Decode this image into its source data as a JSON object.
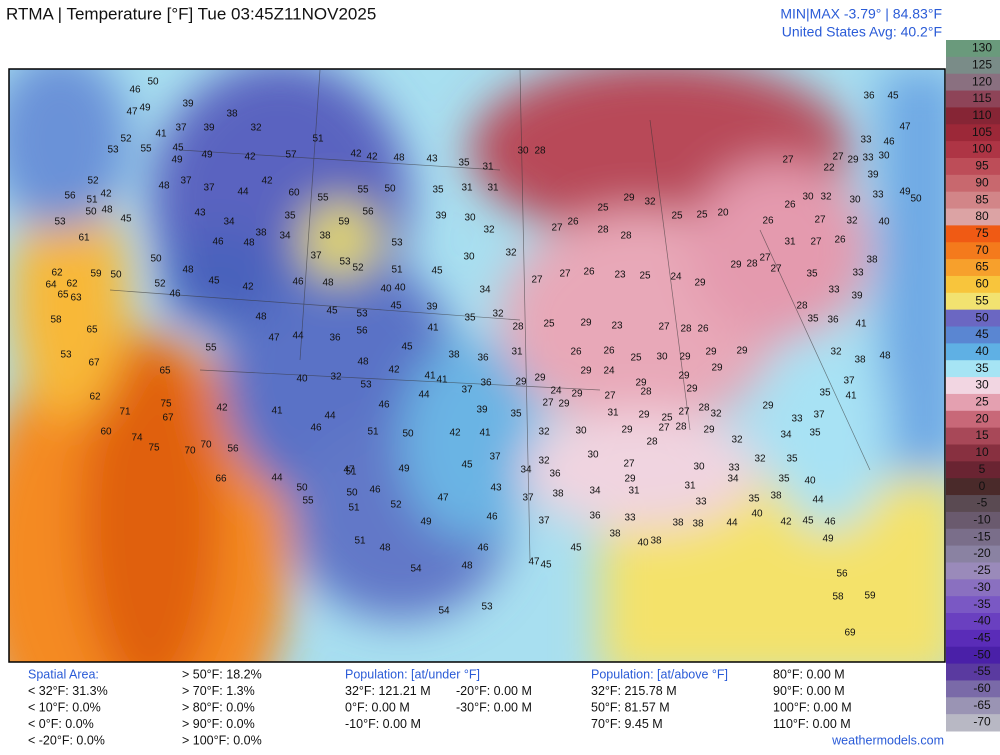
{
  "header": {
    "title": "RTMA | Temperature [°F]  Tue 03:45Z11NOV2025",
    "minmax": "MIN|MAX -3.79° | 84.83°F",
    "average": "United States Avg: 40.2°F"
  },
  "colorbar": {
    "ticks": [
      130,
      125,
      120,
      115,
      110,
      105,
      100,
      95,
      90,
      85,
      80,
      75,
      70,
      65,
      60,
      55,
      50,
      45,
      40,
      35,
      30,
      25,
      20,
      15,
      10,
      5,
      0,
      -5,
      -10,
      -15,
      -20,
      -25,
      -30,
      -35,
      -40,
      -45,
      -50,
      -55,
      -60,
      -65,
      -70
    ],
    "colors": [
      "#6a9a7c",
      "#7a8c88",
      "#8a7080",
      "#8e4458",
      "#862535",
      "#9c2838",
      "#ae3545",
      "#bd4d58",
      "#c8686e",
      "#d28588",
      "#dca3a4",
      "#f05a14",
      "#f47a1c",
      "#f7a02c",
      "#f8c53c",
      "#f2e270",
      "#6b67c2",
      "#5a86d2",
      "#5fb0e4",
      "#a6e4f4",
      "#f2d6e2",
      "#e4a0b0",
      "#c86878",
      "#a84858",
      "#883040",
      "#6a2432",
      "#4a2a2a",
      "#5a4a52",
      "#6a5a6e",
      "#7a6e8a",
      "#8a82a2",
      "#9a8aba",
      "#8a70c0",
      "#7a58c4",
      "#6a40c0",
      "#5a2cb8",
      "#4a20a8",
      "#5a3aa0",
      "#7a6aa8",
      "#9a94b4",
      "#b8b8c4"
    ]
  },
  "stations": [
    50,
    46,
    49,
    39,
    47,
    41,
    37,
    39,
    38,
    32,
    52,
    53,
    55,
    45,
    49,
    49,
    42,
    57,
    51,
    42,
    42,
    48,
    43,
    35,
    31,
    30,
    28,
    52,
    48,
    37,
    37,
    44,
    42,
    60,
    55,
    55,
    50,
    35,
    31,
    31,
    56,
    51,
    42,
    50,
    48,
    45,
    43,
    34,
    35,
    59,
    56,
    39,
    30,
    53,
    61,
    38,
    34,
    38,
    53,
    46,
    48,
    32,
    27,
    26,
    25,
    29,
    32,
    28,
    28,
    25,
    25,
    20,
    50,
    48,
    37,
    53,
    52,
    51,
    45,
    30,
    32,
    62,
    62,
    59,
    50,
    52,
    46,
    45,
    42,
    46,
    48,
    40,
    40,
    34,
    27,
    27,
    26,
    23,
    25,
    24,
    29,
    29,
    27,
    31,
    27,
    26,
    64,
    63,
    65,
    45,
    53,
    45,
    39,
    35,
    32,
    28,
    25,
    29,
    23,
    27,
    28,
    26,
    58,
    65,
    48,
    47,
    44,
    36,
    56,
    45,
    41,
    38,
    36,
    31,
    26,
    26,
    25,
    30,
    29,
    29,
    29,
    55,
    53,
    67,
    48,
    42,
    41,
    41,
    37,
    36,
    29,
    29,
    29,
    24,
    29,
    29,
    29,
    40,
    32,
    53,
    65,
    44,
    24,
    29,
    27,
    28,
    29,
    62,
    75,
    42,
    46,
    39,
    35,
    27,
    29,
    31,
    29,
    25,
    27,
    28,
    32,
    29,
    33,
    71,
    67,
    41,
    44,
    60,
    74,
    46,
    51,
    50,
    42,
    41,
    32,
    30,
    29,
    27,
    28,
    29,
    32,
    34,
    35,
    75,
    70,
    70,
    56,
    28,
    32,
    35,
    27,
    30,
    32,
    45,
    37,
    49,
    51,
    34,
    36,
    30,
    33,
    29,
    66,
    44,
    47,
    46,
    50,
    50,
    43,
    38,
    34,
    31,
    31,
    34,
    35,
    40,
    55,
    51,
    52,
    47,
    37,
    33,
    35,
    38,
    44,
    49,
    46,
    37,
    36,
    33,
    40,
    42,
    45,
    46,
    51,
    48,
    46,
    45,
    38,
    40,
    38,
    38,
    38,
    44,
    49,
    54,
    48,
    47,
    45,
    56,
    54,
    53,
    58,
    59,
    69,
    36,
    45,
    47,
    33,
    46,
    27,
    29,
    33,
    30,
    39,
    22,
    27,
    30,
    32,
    30,
    33,
    49,
    50,
    26,
    26,
    27,
    32,
    40,
    38,
    33,
    35,
    27,
    28,
    33,
    39,
    28,
    35,
    36,
    41,
    48,
    32,
    38,
    37,
    35,
    41,
    37
  ],
  "footer": {
    "spatial_title": "Spatial Area:",
    "spatial_left": [
      "< 32°F: 31.3%",
      "< 10°F: 0.0%",
      "< 0°F: 0.0%",
      "< -20°F: 0.0%"
    ],
    "spatial_right": [
      "> 50°F: 18.2%",
      "> 70°F: 1.3%",
      "> 80°F: 0.0%",
      "> 90°F: 0.0%",
      "> 100°F: 0.0%"
    ],
    "under_title": "Population: [at/under °F]",
    "under_left": [
      "32°F: 121.21 M",
      "0°F: 0.00 M",
      "-10°F: 0.00 M"
    ],
    "under_right": [
      "-20°F: 0.00 M",
      "-30°F: 0.00 M"
    ],
    "above_title": "Population: [at/above °F]",
    "above_left": [
      "32°F: 215.78 M",
      "50°F: 81.57 M",
      "70°F: 9.45 M"
    ],
    "above_right": [
      "80°F: 0.00 M",
      "90°F: 0.00 M",
      "100°F: 0.00 M",
      "110°F: 0.00 M"
    ],
    "credit": "weathermodels.com"
  }
}
